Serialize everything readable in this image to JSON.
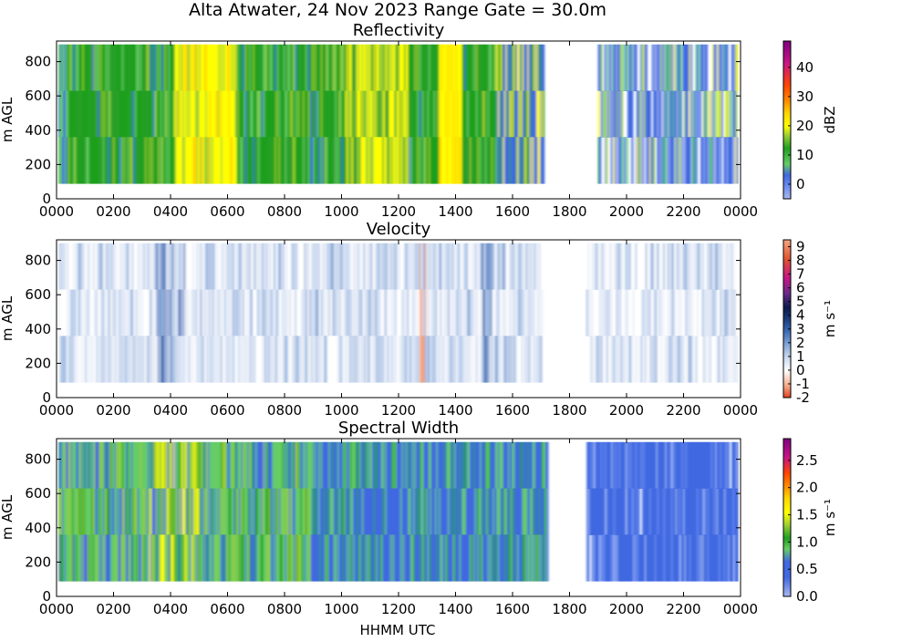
{
  "figure": {
    "suptitle": "Alta Atwater, 24 Nov 2023 Range Gate = 30.0m",
    "xlabel": "HHMM UTC"
  },
  "chart_data": [
    {
      "type": "heatmap",
      "title": "Reflectivity",
      "ylabel": "m AGL",
      "x_ticks": [
        "0000",
        "0200",
        "0400",
        "0600",
        "0800",
        "1000",
        "1200",
        "1400",
        "1600",
        "1800",
        "2000",
        "2200",
        "0000"
      ],
      "xlim_hours": [
        0,
        24
      ],
      "y_ticks": [
        "0",
        "200",
        "400",
        "600",
        "800"
      ],
      "ylim": [
        0,
        920
      ],
      "colorbar_label": "dBZ",
      "colorbar_ticks": [
        "0",
        "10",
        "20",
        "30",
        "40"
      ],
      "colorbar_range": [
        -5,
        49
      ],
      "data_range_height": [
        90,
        900
      ],
      "data_segments_hours": [
        [
          0.05,
          17.1
        ],
        [
          19.0,
          23.9
        ]
      ],
      "colors": [
        "#a8b8f0",
        "#4169e1",
        "#66cc66",
        "#2e9e2e",
        "#1fa01f",
        "#9acd32",
        "#ffff00",
        "#ffd700",
        "#ff8c00",
        "#ff4500",
        "#c71585",
        "#800080"
      ]
    },
    {
      "type": "heatmap",
      "title": "Velocity",
      "ylabel": "m s⁻¹",
      "ylabel_left": "m AGL",
      "x_ticks": [
        "0000",
        "0200",
        "0400",
        "0600",
        "0800",
        "1000",
        "1200",
        "1400",
        "1600",
        "1800",
        "2000",
        "2200",
        "0000"
      ],
      "xlim_hours": [
        0,
        24
      ],
      "y_ticks": [
        "0",
        "200",
        "400",
        "600",
        "800"
      ],
      "ylim": [
        0,
        920
      ],
      "colorbar_label": "m s⁻¹",
      "colorbar_ticks": [
        "-2",
        "-1",
        "0",
        "1",
        "2",
        "3",
        "4",
        "5",
        "6",
        "7",
        "8",
        "9"
      ],
      "colorbar_range": [
        -2,
        9.5
      ],
      "data_range_height": [
        90,
        900
      ],
      "data_segments_hours": [
        [
          0.05,
          17.1
        ],
        [
          18.6,
          23.9
        ]
      ],
      "colors": [
        "#e04020",
        "#f4a582",
        "#ffffff",
        "#c6d6ee",
        "#7fa3d6",
        "#3b6bb5",
        "#1a3a7a",
        "#0a1a4a",
        "#6a2a8a",
        "#c71585",
        "#e0552f",
        "#f4a582"
      ]
    },
    {
      "type": "heatmap",
      "title": "Spectral Width",
      "ylabel": "m AGL",
      "x_ticks": [
        "0000",
        "0200",
        "0400",
        "0600",
        "0800",
        "1000",
        "1200",
        "1400",
        "1600",
        "1800",
        "2000",
        "2200",
        "0000"
      ],
      "xlim_hours": [
        0,
        24
      ],
      "y_ticks": [
        "0",
        "200",
        "400",
        "600",
        "800"
      ],
      "ylim": [
        0,
        920
      ],
      "colorbar_label": "m s⁻¹",
      "colorbar_ticks": [
        "0.0",
        "0.5",
        "1.0",
        "1.5",
        "2.0",
        "2.5"
      ],
      "colorbar_range": [
        0,
        2.9
      ],
      "data_range_height": [
        90,
        900
      ],
      "data_segments_hours": [
        [
          0.05,
          17.2
        ],
        [
          18.6,
          23.9
        ]
      ],
      "colors": [
        "#a8b8f0",
        "#4169e1",
        "#66cc66",
        "#1fa01f",
        "#9acd32",
        "#ffff00",
        "#ffd700",
        "#ff8c00",
        "#ff4500",
        "#c71585",
        "#800080"
      ]
    }
  ]
}
